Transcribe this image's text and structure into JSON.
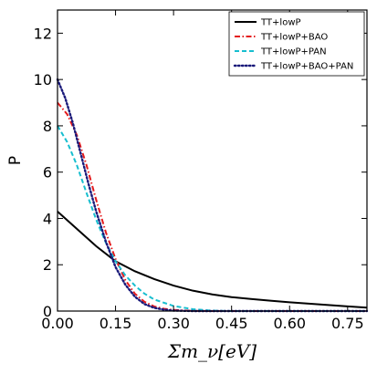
{
  "chart_data": {
    "type": "line",
    "title": "",
    "xlabel": "Σm_ν[eV]",
    "ylabel": "P",
    "xlim": [
      0,
      0.8
    ],
    "ylim": [
      0,
      13
    ],
    "xticks": [
      0.0,
      0.15,
      0.3,
      0.45,
      0.6,
      0.75
    ],
    "xtick_labels": [
      "0.00",
      "0.15",
      "0.30",
      "0.45",
      "0.60",
      "0.75"
    ],
    "yticks": [
      0,
      2,
      4,
      6,
      8,
      10,
      12
    ],
    "ytick_labels": [
      "0",
      "2",
      "4",
      "6",
      "8",
      "10",
      "12"
    ],
    "grid": false,
    "legend_position": "top-right",
    "series": [
      {
        "name": "TT+lowP",
        "color": "#000000",
        "dash": "solid",
        "x": [
          0.0,
          0.05,
          0.1,
          0.15,
          0.2,
          0.25,
          0.3,
          0.35,
          0.4,
          0.45,
          0.5,
          0.55,
          0.6,
          0.65,
          0.7,
          0.75,
          0.8
        ],
        "y": [
          4.3,
          3.55,
          2.8,
          2.15,
          1.72,
          1.38,
          1.1,
          0.88,
          0.72,
          0.6,
          0.52,
          0.45,
          0.38,
          0.32,
          0.26,
          0.2,
          0.15
        ]
      },
      {
        "name": "TT+lowP+BAO",
        "color": "#e41a1c",
        "dash": "dashdot",
        "x": [
          0.0,
          0.025,
          0.05,
          0.075,
          0.1,
          0.125,
          0.15,
          0.175,
          0.2,
          0.225,
          0.25,
          0.275,
          0.3,
          0.35,
          0.4,
          0.45,
          0.5,
          0.55,
          0.6,
          0.65,
          0.7,
          0.75,
          0.8
        ],
        "y": [
          9.0,
          8.5,
          7.6,
          6.3,
          4.8,
          3.4,
          2.25,
          1.35,
          0.75,
          0.4,
          0.2,
          0.1,
          0.05,
          0.01,
          0.0,
          0.0,
          0.0,
          0.0,
          0.0,
          0.0,
          0.0,
          0.0,
          0.0
        ]
      },
      {
        "name": "TT+lowP+PAN",
        "color": "#17becf",
        "dash": "dashed",
        "x": [
          0.0,
          0.025,
          0.05,
          0.075,
          0.1,
          0.125,
          0.15,
          0.175,
          0.2,
          0.225,
          0.25,
          0.3,
          0.35,
          0.4,
          0.45,
          0.5,
          0.55,
          0.6,
          0.65,
          0.7,
          0.75,
          0.8
        ],
        "y": [
          8.0,
          7.3,
          6.3,
          5.1,
          3.95,
          2.95,
          2.15,
          1.55,
          1.1,
          0.75,
          0.5,
          0.22,
          0.08,
          0.02,
          0.0,
          0.0,
          0.0,
          0.0,
          0.0,
          0.0,
          0.0,
          0.0
        ]
      },
      {
        "name": "TT+lowP+BAO+PAN",
        "color": "#1a1a7a",
        "dash": "dotted",
        "x": [
          0.0,
          0.02,
          0.04,
          0.06,
          0.08,
          0.1,
          0.125,
          0.15,
          0.175,
          0.2,
          0.225,
          0.25,
          0.275,
          0.3,
          0.35,
          0.4,
          0.45,
          0.5,
          0.55,
          0.6,
          0.65,
          0.7,
          0.75,
          0.8
        ],
        "y": [
          10.0,
          9.2,
          8.1,
          6.8,
          5.5,
          4.3,
          3.0,
          1.9,
          1.15,
          0.62,
          0.3,
          0.14,
          0.06,
          0.02,
          0.0,
          0.0,
          0.0,
          0.0,
          0.0,
          0.0,
          0.0,
          0.0,
          0.0,
          0.0
        ]
      }
    ]
  }
}
